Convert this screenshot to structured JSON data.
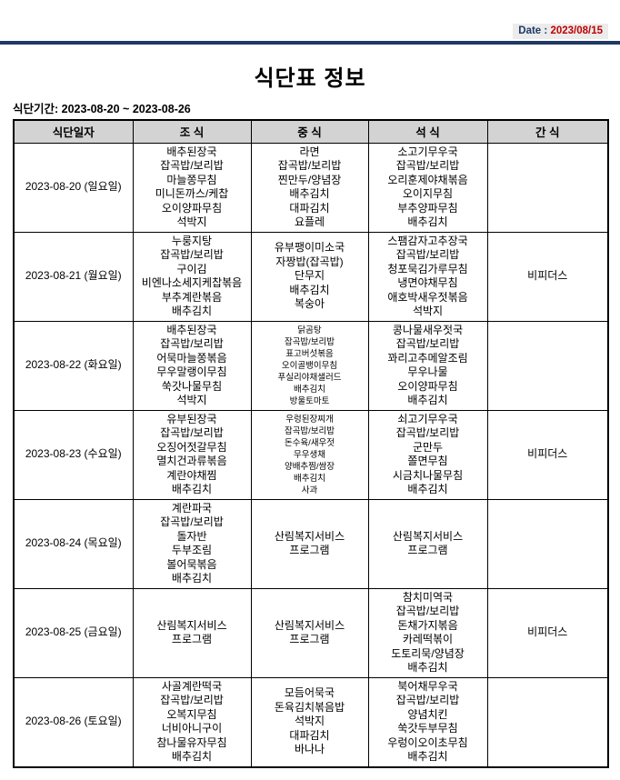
{
  "page": {
    "date_label": "Date :",
    "date_value": "2023/08/15",
    "title": "식단표 정보",
    "period": "식단기간: 2023-08-20 ~ 2023-08-26"
  },
  "table": {
    "headers": [
      "식단일자",
      "조 식",
      "중 식",
      "석 식",
      "간 식"
    ],
    "rows": [
      {
        "date": "2023-08-20 (일요일)",
        "meals": [
          {
            "col": "breakfast",
            "small": false,
            "items": [
              "배추된장국",
              "잡곡밥/보리밥",
              "마늘쫑무침",
              "미니돈까스/케찹",
              "오이양파무침",
              "석박지"
            ]
          },
          {
            "col": "lunch",
            "small": false,
            "items": [
              "라면",
              "잡곡밥/보리밥",
              "찐만두/양념장",
              "배추김치",
              "대파김치",
              "요플레"
            ]
          },
          {
            "col": "dinner",
            "small": false,
            "items": [
              "소고기무우국",
              "잡곡밥/보리밥",
              "오리훈제야채볶음",
              "오이지무침",
              "부추양파무침",
              "배추김치"
            ]
          },
          {
            "col": "snack",
            "small": false,
            "items": []
          }
        ]
      },
      {
        "date": "2023-08-21 (월요일)",
        "meals": [
          {
            "col": "breakfast",
            "small": false,
            "items": [
              "누룽지탕",
              "잡곡밥/보리밥",
              "구이김",
              "비엔나소세지케찹볶음",
              "부추계란볶음",
              "배추김치"
            ]
          },
          {
            "col": "lunch",
            "small": false,
            "items": [
              "유부팽이미소국",
              "자짱밥(잡곡밥)",
              "단무지",
              "배추김치",
              "복숭아"
            ]
          },
          {
            "col": "dinner",
            "small": false,
            "items": [
              "스팸감자고추장국",
              "잡곡밥/보리밥",
              "청포묵김가루무침",
              "냉면야채무침",
              "애호박새우젓볶음",
              "석박지"
            ]
          },
          {
            "col": "snack",
            "small": false,
            "items": [
              "비피더스"
            ]
          }
        ]
      },
      {
        "date": "2023-08-22 (화요일)",
        "meals": [
          {
            "col": "breakfast",
            "small": false,
            "items": [
              "배추된장국",
              "잡곡밥/보리밥",
              "어묵마늘쫑볶음",
              "무우말랭이무침",
              "쑥갓나물무침",
              "석박지"
            ]
          },
          {
            "col": "lunch",
            "small": true,
            "items": [
              "닭곰탕",
              "잡곡밥/보리밥",
              "표고버섯볶음",
              "오이골뱅이무침",
              "푸실리야채샐러드",
              "배추김치",
              "방울토마토"
            ]
          },
          {
            "col": "dinner",
            "small": false,
            "items": [
              "콩나물새우젓국",
              "잡곡밥/보리밥",
              "꽈리고추메알조림",
              "무우나물",
              "오이양파무침",
              "배추김치"
            ]
          },
          {
            "col": "snack",
            "small": false,
            "items": []
          }
        ]
      },
      {
        "date": "2023-08-23 (수요일)",
        "meals": [
          {
            "col": "breakfast",
            "small": false,
            "items": [
              "유부된장국",
              "잡곡밥/보리밥",
              "오징어젓갈무침",
              "멸치건과류볶음",
              "계란야채찜",
              "배추김치"
            ]
          },
          {
            "col": "lunch",
            "small": true,
            "items": [
              "우렁된장찌개",
              "잡곡밥/보리밥",
              "돈수육/새우젓",
              "무우생채",
              "양배추찜/쌈장",
              "배추김치",
              "사과"
            ]
          },
          {
            "col": "dinner",
            "small": false,
            "items": [
              "쇠고기무우국",
              "잡곡밥/보리밥",
              "군만두",
              "쫄면무침",
              "시금치나물무침",
              "배추김치"
            ]
          },
          {
            "col": "snack",
            "small": false,
            "items": [
              "비피더스"
            ]
          }
        ]
      },
      {
        "date": "2023-08-24 (목요일)",
        "meals": [
          {
            "col": "breakfast",
            "small": false,
            "items": [
              "계란파국",
              "잡곡밥/보리밥",
              "돌자반",
              "두부조림",
              "볼어묵볶음",
              "배추김치"
            ]
          },
          {
            "col": "lunch",
            "small": false,
            "items": [
              "산림복지서비스",
              "프로그램"
            ]
          },
          {
            "col": "dinner",
            "small": false,
            "items": [
              "산림복지서비스",
              "프로그램"
            ]
          },
          {
            "col": "snack",
            "small": false,
            "items": []
          }
        ]
      },
      {
        "date": "2023-08-25 (금요일)",
        "meals": [
          {
            "col": "breakfast",
            "small": false,
            "items": [
              "산림복지서비스",
              "프로그램"
            ]
          },
          {
            "col": "lunch",
            "small": false,
            "items": [
              "산림복지서비스",
              "프로그램"
            ]
          },
          {
            "col": "dinner",
            "small": false,
            "items": [
              "참치미역국",
              "잡곡밥/보리밥",
              "돈채가지볶음",
              "카레떡볶이",
              "도토리묵/양념장",
              "배추김치"
            ]
          },
          {
            "col": "snack",
            "small": false,
            "items": [
              "비피더스"
            ]
          }
        ]
      },
      {
        "date": "2023-08-26 (토요일)",
        "meals": [
          {
            "col": "breakfast",
            "small": false,
            "items": [
              "사골계란떡국",
              "잡곡밥/보리밥",
              "오복지무침",
              "너비아니구이",
              "참나물유자무침",
              "배추김치"
            ]
          },
          {
            "col": "lunch",
            "small": false,
            "items": [
              "모듬어묵국",
              "돈육김치볶음밥",
              "석박지",
              "대파김치",
              "바나나"
            ]
          },
          {
            "col": "dinner",
            "small": false,
            "items": [
              "북어채무우국",
              "잡곡밥/보리밥",
              "양념치킨",
              "쑥갓두부무침",
              "우렁이오이초무침",
              "배추김치"
            ]
          },
          {
            "col": "snack",
            "small": false,
            "items": []
          }
        ]
      }
    ]
  }
}
